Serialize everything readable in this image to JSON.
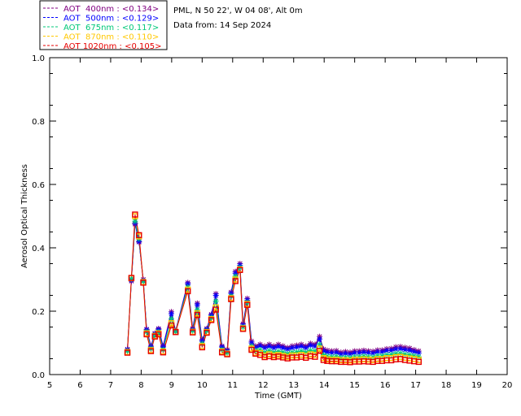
{
  "header": {
    "site": "PML, N 50 22', W 04 08', Alt 0m",
    "date": "Data from: 14 Sep 2024"
  },
  "chart_data": {
    "type": "line",
    "xlabel": "Time (GMT)",
    "ylabel": "Aerosol Optical Thickness",
    "xlim": [
      5,
      20
    ],
    "ylim": [
      0,
      1.0
    ],
    "xticks": [
      "5",
      "6",
      "7",
      "8",
      "9",
      "10",
      "11",
      "12",
      "13",
      "14",
      "15",
      "16",
      "17",
      "18",
      "19",
      "20"
    ],
    "yticks": [
      "0.0",
      "0.2",
      "0.4",
      "0.6",
      "0.8",
      "1.0"
    ],
    "grid": false,
    "legend_position": "top-left (outside plot)",
    "x": [
      7.55,
      7.68,
      7.8,
      7.93,
      8.07,
      8.18,
      8.32,
      8.45,
      8.57,
      8.72,
      8.99,
      9.13,
      9.53,
      9.69,
      9.84,
      10.0,
      10.15,
      10.3,
      10.45,
      10.65,
      10.82,
      10.95,
      11.09,
      11.24,
      11.34,
      11.48,
      11.62,
      11.75,
      11.9,
      12.05,
      12.2,
      12.35,
      12.5,
      12.65,
      12.8,
      12.95,
      13.1,
      13.25,
      13.4,
      13.55,
      13.7,
      13.85,
      13.98,
      14.1,
      14.25,
      14.4,
      14.55,
      14.7,
      14.85,
      15.0,
      15.15,
      15.3,
      15.45,
      15.6,
      15.75,
      15.9,
      16.05,
      16.2,
      16.35,
      16.5,
      16.65,
      16.8,
      16.95,
      17.1
    ],
    "series": [
      {
        "name": "AOT  400nm : <0.134>",
        "color": "#800080",
        "values": [
          0.08,
          0.295,
          0.475,
          0.418,
          0.3,
          0.143,
          0.09,
          0.13,
          0.145,
          0.09,
          0.198,
          0.138,
          0.29,
          0.145,
          0.225,
          0.11,
          0.145,
          0.19,
          0.255,
          0.09,
          0.078,
          0.26,
          0.325,
          0.35,
          0.16,
          0.24,
          0.105,
          0.09,
          0.095,
          0.09,
          0.095,
          0.09,
          0.095,
          0.09,
          0.085,
          0.09,
          0.092,
          0.095,
          0.09,
          0.098,
          0.095,
          0.12,
          0.08,
          0.076,
          0.074,
          0.075,
          0.07,
          0.072,
          0.07,
          0.074,
          0.074,
          0.076,
          0.074,
          0.073,
          0.077,
          0.077,
          0.081,
          0.082,
          0.087,
          0.088,
          0.085,
          0.083,
          0.078,
          0.074
        ]
      },
      {
        "name": "AOT  500nm : <0.129>",
        "color": "#0000ff",
        "values": [
          0.078,
          0.298,
          0.478,
          0.42,
          0.296,
          0.141,
          0.087,
          0.128,
          0.142,
          0.087,
          0.192,
          0.137,
          0.286,
          0.142,
          0.22,
          0.106,
          0.142,
          0.187,
          0.25,
          0.087,
          0.074,
          0.256,
          0.32,
          0.345,
          0.156,
          0.235,
          0.1,
          0.085,
          0.09,
          0.084,
          0.089,
          0.084,
          0.088,
          0.084,
          0.08,
          0.084,
          0.086,
          0.089,
          0.084,
          0.092,
          0.089,
          0.112,
          0.074,
          0.07,
          0.068,
          0.069,
          0.064,
          0.066,
          0.064,
          0.068,
          0.068,
          0.07,
          0.068,
          0.067,
          0.071,
          0.071,
          0.075,
          0.076,
          0.08,
          0.081,
          0.078,
          0.076,
          0.072,
          0.068
        ]
      },
      {
        "name": "AOT  675nm : <0.117>",
        "color": "#00c878",
        "values": [
          0.074,
          0.302,
          0.484,
          0.428,
          0.294,
          0.135,
          0.082,
          0.124,
          0.135,
          0.079,
          0.176,
          0.136,
          0.276,
          0.138,
          0.205,
          0.098,
          0.138,
          0.18,
          0.232,
          0.079,
          0.069,
          0.248,
          0.31,
          0.338,
          0.15,
          0.228,
          0.09,
          0.076,
          0.078,
          0.07,
          0.075,
          0.07,
          0.073,
          0.07,
          0.066,
          0.07,
          0.071,
          0.074,
          0.07,
          0.076,
          0.074,
          0.095,
          0.062,
          0.058,
          0.056,
          0.057,
          0.053,
          0.054,
          0.053,
          0.056,
          0.056,
          0.058,
          0.056,
          0.055,
          0.059,
          0.059,
          0.062,
          0.063,
          0.066,
          0.067,
          0.064,
          0.062,
          0.059,
          0.056
        ]
      },
      {
        "name": "AOT  870nm : <0.110>",
        "color": "#ffc800",
        "values": [
          0.071,
          0.304,
          0.5,
          0.436,
          0.292,
          0.13,
          0.077,
          0.122,
          0.13,
          0.073,
          0.162,
          0.135,
          0.268,
          0.135,
          0.193,
          0.09,
          0.134,
          0.175,
          0.212,
          0.073,
          0.066,
          0.241,
          0.3,
          0.332,
          0.146,
          0.223,
          0.082,
          0.069,
          0.068,
          0.06,
          0.064,
          0.06,
          0.062,
          0.059,
          0.056,
          0.06,
          0.06,
          0.062,
          0.059,
          0.064,
          0.062,
          0.082,
          0.052,
          0.048,
          0.047,
          0.047,
          0.045,
          0.045,
          0.044,
          0.047,
          0.047,
          0.048,
          0.047,
          0.046,
          0.049,
          0.049,
          0.052,
          0.052,
          0.055,
          0.056,
          0.053,
          0.051,
          0.049,
          0.046
        ]
      },
      {
        "name": "AOT 1020nm : <0.105>",
        "color": "#e60000",
        "values": [
          0.069,
          0.305,
          0.505,
          0.44,
          0.29,
          0.127,
          0.074,
          0.12,
          0.127,
          0.07,
          0.155,
          0.134,
          0.263,
          0.133,
          0.188,
          0.086,
          0.132,
          0.172,
          0.205,
          0.07,
          0.064,
          0.238,
          0.295,
          0.33,
          0.144,
          0.22,
          0.078,
          0.066,
          0.062,
          0.055,
          0.058,
          0.055,
          0.057,
          0.054,
          0.051,
          0.054,
          0.054,
          0.056,
          0.053,
          0.058,
          0.056,
          0.075,
          0.046,
          0.043,
          0.042,
          0.042,
          0.04,
          0.04,
          0.039,
          0.041,
          0.041,
          0.042,
          0.041,
          0.04,
          0.043,
          0.043,
          0.045,
          0.045,
          0.048,
          0.049,
          0.046,
          0.044,
          0.042,
          0.04
        ]
      }
    ]
  }
}
